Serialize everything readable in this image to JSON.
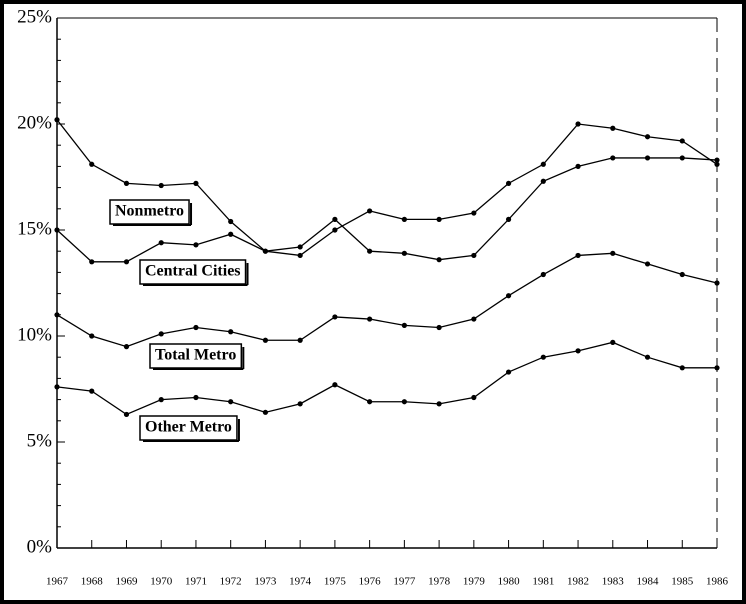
{
  "chart_data": {
    "type": "line",
    "categories": [
      "1967",
      "1968",
      "1969",
      "1970",
      "1971",
      "1972",
      "1973",
      "1974",
      "1975",
      "1976",
      "1977",
      "1978",
      "1979",
      "1980",
      "1981",
      "1982",
      "1983",
      "1984",
      "1985",
      "1986"
    ],
    "series": [
      {
        "name": "Nonmetro",
        "color": "#000000",
        "values": [
          20.2,
          18.1,
          17.2,
          17.1,
          17.2,
          15.4,
          14.0,
          13.8,
          15.0,
          15.9,
          15.5,
          15.5,
          15.8,
          17.2,
          18.1,
          20.0,
          19.8,
          19.4,
          19.2,
          18.1
        ]
      },
      {
        "name": "Central Cities",
        "color": "#000000",
        "values": [
          15.0,
          13.5,
          13.5,
          14.4,
          14.3,
          14.8,
          14.0,
          14.2,
          15.5,
          14.0,
          13.9,
          13.6,
          13.8,
          15.5,
          17.3,
          18.0,
          18.4,
          18.4,
          18.4,
          18.3
        ]
      },
      {
        "name": "Total Metro",
        "color": "#000000",
        "values": [
          11.0,
          10.0,
          9.5,
          10.1,
          10.4,
          10.2,
          9.8,
          9.8,
          10.9,
          10.8,
          10.5,
          10.4,
          10.8,
          11.9,
          12.9,
          13.8,
          13.9,
          13.4,
          12.9,
          12.5
        ]
      },
      {
        "name": "Other Metro",
        "color": "#000000",
        "values": [
          7.6,
          7.4,
          6.3,
          7.0,
          7.1,
          6.9,
          6.4,
          6.8,
          7.7,
          6.9,
          6.9,
          6.8,
          7.1,
          8.3,
          9.0,
          9.3,
          9.7,
          9.0,
          8.5,
          8.5
        ]
      }
    ],
    "ylim": [
      0,
      25
    ],
    "yticks": [
      {
        "value": 0,
        "label": "0%"
      },
      {
        "value": 5,
        "label": "5%"
      },
      {
        "value": 10,
        "label": "10%"
      },
      {
        "value": 15,
        "label": "15%"
      },
      {
        "value": 20,
        "label": "20%"
      },
      {
        "value": 25,
        "label": "25%"
      }
    ]
  }
}
